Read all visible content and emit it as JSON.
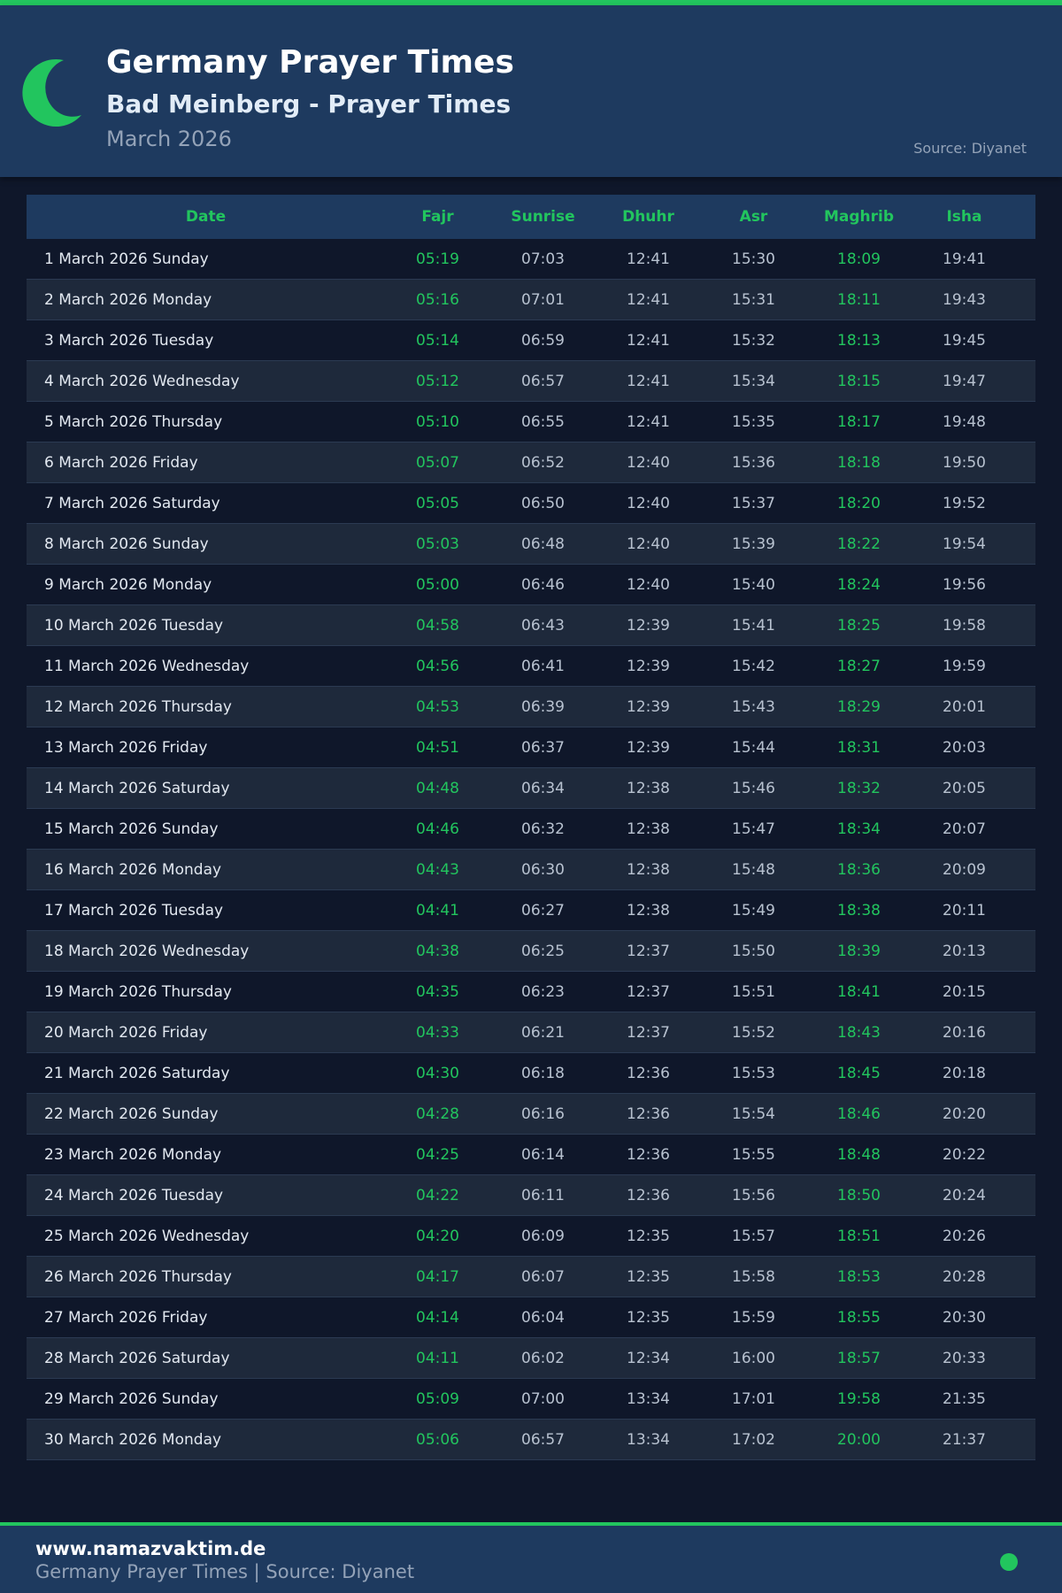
{
  "header": {
    "title": "Germany Prayer Times",
    "subtitle": "Bad Meinberg - Prayer Times",
    "month": "March 2026",
    "source": "Source: Diyanet",
    "icon": "crescent-moon-icon"
  },
  "colors": {
    "accent": "#22c55e",
    "header_bg": "#1e3a5f",
    "page_bg": "#0f172a",
    "row_alt_bg": "#1e293b"
  },
  "table": {
    "columns": [
      "Date",
      "Fajr",
      "Sunrise",
      "Dhuhr",
      "Asr",
      "Maghrib",
      "Isha"
    ],
    "rows": [
      [
        "1 March 2026 Sunday",
        "05:19",
        "07:03",
        "12:41",
        "15:30",
        "18:09",
        "19:41"
      ],
      [
        "2 March 2026 Monday",
        "05:16",
        "07:01",
        "12:41",
        "15:31",
        "18:11",
        "19:43"
      ],
      [
        "3 March 2026 Tuesday",
        "05:14",
        "06:59",
        "12:41",
        "15:32",
        "18:13",
        "19:45"
      ],
      [
        "4 March 2026 Wednesday",
        "05:12",
        "06:57",
        "12:41",
        "15:34",
        "18:15",
        "19:47"
      ],
      [
        "5 March 2026 Thursday",
        "05:10",
        "06:55",
        "12:41",
        "15:35",
        "18:17",
        "19:48"
      ],
      [
        "6 March 2026 Friday",
        "05:07",
        "06:52",
        "12:40",
        "15:36",
        "18:18",
        "19:50"
      ],
      [
        "7 March 2026 Saturday",
        "05:05",
        "06:50",
        "12:40",
        "15:37",
        "18:20",
        "19:52"
      ],
      [
        "8 March 2026 Sunday",
        "05:03",
        "06:48",
        "12:40",
        "15:39",
        "18:22",
        "19:54"
      ],
      [
        "9 March 2026 Monday",
        "05:00",
        "06:46",
        "12:40",
        "15:40",
        "18:24",
        "19:56"
      ],
      [
        "10 March 2026 Tuesday",
        "04:58",
        "06:43",
        "12:39",
        "15:41",
        "18:25",
        "19:58"
      ],
      [
        "11 March 2026 Wednesday",
        "04:56",
        "06:41",
        "12:39",
        "15:42",
        "18:27",
        "19:59"
      ],
      [
        "12 March 2026 Thursday",
        "04:53",
        "06:39",
        "12:39",
        "15:43",
        "18:29",
        "20:01"
      ],
      [
        "13 March 2026 Friday",
        "04:51",
        "06:37",
        "12:39",
        "15:44",
        "18:31",
        "20:03"
      ],
      [
        "14 March 2026 Saturday",
        "04:48",
        "06:34",
        "12:38",
        "15:46",
        "18:32",
        "20:05"
      ],
      [
        "15 March 2026 Sunday",
        "04:46",
        "06:32",
        "12:38",
        "15:47",
        "18:34",
        "20:07"
      ],
      [
        "16 March 2026 Monday",
        "04:43",
        "06:30",
        "12:38",
        "15:48",
        "18:36",
        "20:09"
      ],
      [
        "17 March 2026 Tuesday",
        "04:41",
        "06:27",
        "12:38",
        "15:49",
        "18:38",
        "20:11"
      ],
      [
        "18 March 2026 Wednesday",
        "04:38",
        "06:25",
        "12:37",
        "15:50",
        "18:39",
        "20:13"
      ],
      [
        "19 March 2026 Thursday",
        "04:35",
        "06:23",
        "12:37",
        "15:51",
        "18:41",
        "20:15"
      ],
      [
        "20 March 2026 Friday",
        "04:33",
        "06:21",
        "12:37",
        "15:52",
        "18:43",
        "20:16"
      ],
      [
        "21 March 2026 Saturday",
        "04:30",
        "06:18",
        "12:36",
        "15:53",
        "18:45",
        "20:18"
      ],
      [
        "22 March 2026 Sunday",
        "04:28",
        "06:16",
        "12:36",
        "15:54",
        "18:46",
        "20:20"
      ],
      [
        "23 March 2026 Monday",
        "04:25",
        "06:14",
        "12:36",
        "15:55",
        "18:48",
        "20:22"
      ],
      [
        "24 March 2026 Tuesday",
        "04:22",
        "06:11",
        "12:36",
        "15:56",
        "18:50",
        "20:24"
      ],
      [
        "25 March 2026 Wednesday",
        "04:20",
        "06:09",
        "12:35",
        "15:57",
        "18:51",
        "20:26"
      ],
      [
        "26 March 2026 Thursday",
        "04:17",
        "06:07",
        "12:35",
        "15:58",
        "18:53",
        "20:28"
      ],
      [
        "27 March 2026 Friday",
        "04:14",
        "06:04",
        "12:35",
        "15:59",
        "18:55",
        "20:30"
      ],
      [
        "28 March 2026 Saturday",
        "04:11",
        "06:02",
        "12:34",
        "16:00",
        "18:57",
        "20:33"
      ],
      [
        "29 March 2026 Sunday",
        "05:09",
        "07:00",
        "13:34",
        "17:01",
        "19:58",
        "21:35"
      ],
      [
        "30 March 2026 Monday",
        "05:06",
        "06:57",
        "13:34",
        "17:02",
        "20:00",
        "21:37"
      ]
    ]
  },
  "footer": {
    "site": "www.namazvaktim.de",
    "text": "Germany Prayer Times | Source: Diyanet",
    "status_dot": "status-dot-icon"
  }
}
